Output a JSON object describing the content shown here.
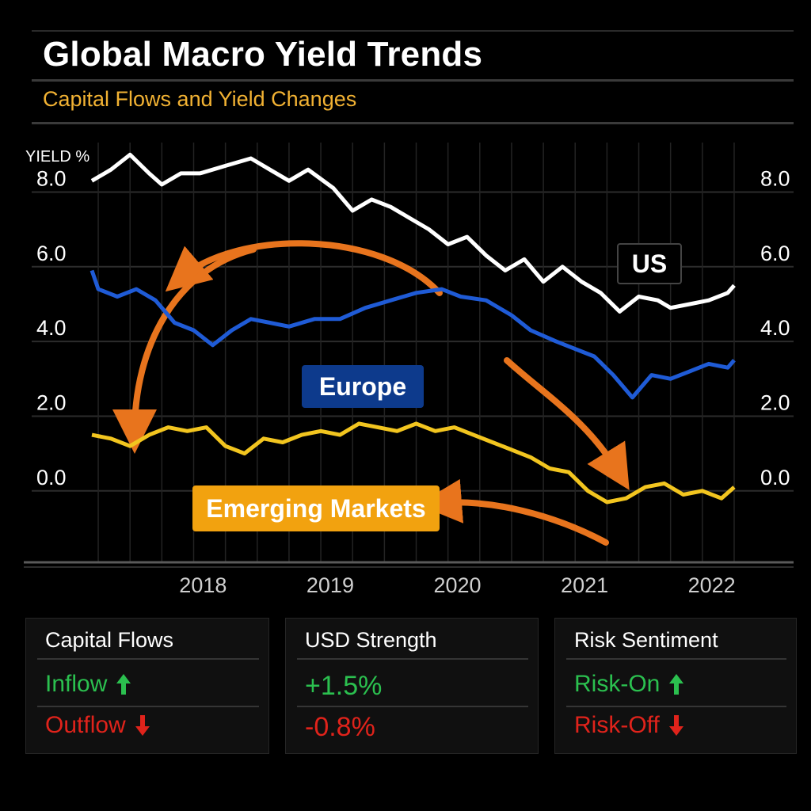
{
  "header": {
    "title": "Global Macro Yield Trends",
    "subtitle": "Capital Flows and Yield Changes"
  },
  "chart_data": {
    "type": "line",
    "ylabel": "YIELD %",
    "yticks": [
      "8.0",
      "6.0",
      "4.0",
      "2.0",
      "0.0"
    ],
    "ytick_values": [
      8.0,
      6.0,
      4.0,
      2.0,
      0.0
    ],
    "xticks": [
      "2018",
      "2019",
      "2020",
      "2021",
      "2022"
    ],
    "xtick_values": [
      2018,
      2019,
      2020,
      2021,
      2022
    ],
    "xlim": [
      2017.4,
      2022.55
    ],
    "ylim": [
      -1.7,
      8.9
    ],
    "grid": true,
    "series": [
      {
        "name": "US",
        "color": "#ffffff",
        "x": [
          2017.45,
          2017.6,
          2017.75,
          2017.9,
          2018.0,
          2018.15,
          2018.3,
          2018.5,
          2018.7,
          2018.85,
          2019.0,
          2019.15,
          2019.35,
          2019.5,
          2019.65,
          2019.8,
          2019.95,
          2020.1,
          2020.25,
          2020.4,
          2020.55,
          2020.7,
          2020.85,
          2021.0,
          2021.15,
          2021.3,
          2021.45,
          2021.6,
          2021.75,
          2021.9,
          2022.0,
          2022.15,
          2022.3,
          2022.45,
          2022.5
        ],
        "y": [
          8.3,
          8.6,
          9.0,
          8.5,
          8.2,
          8.5,
          8.5,
          8.7,
          8.9,
          8.6,
          8.3,
          8.6,
          8.1,
          7.5,
          7.8,
          7.6,
          7.3,
          7.0,
          6.6,
          6.8,
          6.3,
          5.9,
          6.2,
          5.6,
          6.0,
          5.6,
          5.3,
          4.8,
          5.2,
          5.1,
          4.9,
          5.0,
          5.1,
          5.3,
          5.5
        ]
      },
      {
        "name": "Europe",
        "color": "#1f5bd6",
        "x": [
          2017.45,
          2017.5,
          2017.65,
          2017.8,
          2017.95,
          2018.1,
          2018.25,
          2018.4,
          2018.55,
          2018.7,
          2018.85,
          2019.0,
          2019.2,
          2019.4,
          2019.6,
          2019.8,
          2020.0,
          2020.2,
          2020.35,
          2020.55,
          2020.75,
          2020.9,
          2021.1,
          2021.25,
          2021.4,
          2021.55,
          2021.7,
          2021.85,
          2022.0,
          2022.15,
          2022.3,
          2022.45,
          2022.5
        ],
        "y": [
          5.9,
          5.4,
          5.2,
          5.4,
          5.1,
          4.5,
          4.3,
          3.9,
          4.3,
          4.6,
          4.5,
          4.4,
          4.6,
          4.6,
          4.9,
          5.1,
          5.3,
          5.4,
          5.2,
          5.1,
          4.7,
          4.3,
          4.0,
          3.8,
          3.6,
          3.1,
          2.5,
          3.1,
          3.0,
          3.2,
          3.4,
          3.3,
          3.5
        ]
      },
      {
        "name": "Emerging Markets",
        "color": "#f2c51f",
        "x": [
          2017.45,
          2017.6,
          2017.75,
          2017.9,
          2018.05,
          2018.2,
          2018.35,
          2018.5,
          2018.65,
          2018.8,
          2018.95,
          2019.1,
          2019.25,
          2019.4,
          2019.55,
          2019.7,
          2019.85,
          2020.0,
          2020.15,
          2020.3,
          2020.45,
          2020.6,
          2020.75,
          2020.9,
          2021.05,
          2021.2,
          2021.35,
          2021.5,
          2021.65,
          2021.8,
          2021.95,
          2022.1,
          2022.25,
          2022.4,
          2022.5
        ],
        "y": [
          1.5,
          1.4,
          1.2,
          1.5,
          1.7,
          1.6,
          1.7,
          1.2,
          1.0,
          1.4,
          1.3,
          1.5,
          1.6,
          1.5,
          1.8,
          1.7,
          1.6,
          1.8,
          1.6,
          1.7,
          1.5,
          1.3,
          1.1,
          0.9,
          0.6,
          0.5,
          0.0,
          -0.3,
          -0.2,
          0.1,
          0.2,
          -0.1,
          0.0,
          -0.2,
          0.1
        ]
      }
    ],
    "labels": [
      {
        "text": "US",
        "series": "US"
      },
      {
        "text": "Europe",
        "series": "Europe"
      },
      {
        "text": "Emerging Markets",
        "series": "Emerging Markets"
      }
    ],
    "annotation_arrow_color": "#e8741d"
  },
  "panels": [
    {
      "title": "Capital Flows",
      "up": {
        "text": "Inflow",
        "icon": "arrow-up-icon"
      },
      "down": {
        "text": "Outflow",
        "icon": "arrow-down-icon"
      }
    },
    {
      "title": "USD Strength",
      "up": {
        "text": "+1.5%"
      },
      "down": {
        "text": "-0.8%"
      }
    },
    {
      "title": "Risk Sentiment",
      "up": {
        "text": "Risk-On",
        "icon": "arrow-up-icon"
      },
      "down": {
        "text": "Risk-Off",
        "icon": "arrow-down-icon"
      }
    }
  ],
  "colors": {
    "positive": "#2bc04f",
    "negative": "#e0231b",
    "accent": "#f2b233"
  }
}
